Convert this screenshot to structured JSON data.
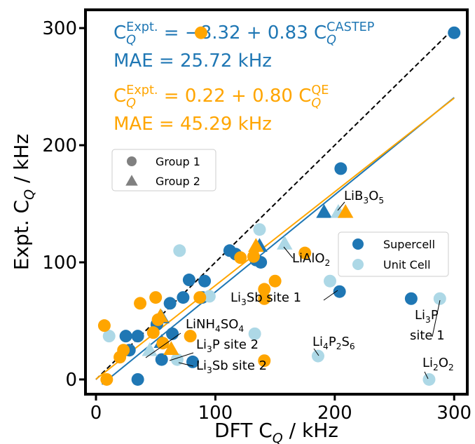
{
  "chart_data": {
    "type": "scatter",
    "xlabel": [
      {
        "text": "DFT C"
      },
      {
        "text": "Q",
        "sub": true,
        "italic": true
      },
      {
        "text": " / kHz"
      }
    ],
    "ylabel": [
      {
        "text": "Expt. C"
      },
      {
        "text": "Q",
        "sub": true,
        "italic": true
      },
      {
        "text": " / kHz"
      }
    ],
    "xlim": [
      -8.8,
      311
    ],
    "ylim": [
      -12.6,
      315.6
    ],
    "xticks": [
      0,
      100,
      200,
      300
    ],
    "yticks": [
      0,
      100,
      200,
      300
    ],
    "groups": [
      {
        "name": "Group 1",
        "marker": "circle"
      },
      {
        "name": "Group 2",
        "marker": "triangle"
      }
    ],
    "legend_marker_color": "#808080",
    "series": [
      {
        "name": "Supercell",
        "color": "#1f77b4",
        "x": [
          [
            300,
            205,
            112,
            117,
            134,
            138,
            78,
            91,
            73,
            89,
            62,
            204,
            264,
            51,
            64,
            25,
            35,
            28,
            55,
            81,
            35
          ],
          [
            191,
            137,
            55,
            55
          ]
        ],
        "values": [
          [
            296,
            180,
            110,
            107,
            102,
            100,
            85,
            84,
            70,
            70,
            65,
            75,
            69,
            47,
            39,
            37,
            37,
            25,
            17,
            15,
            0
          ],
          [
            143,
            114,
            53,
            32
          ]
        ]
      },
      {
        "name": "Unit Cell",
        "color": "#add8e6",
        "x": [
          [
            288,
            279,
            186,
            133,
            196,
            137,
            70,
            95,
            68,
            11
          ],
          [
            158,
            203,
            45
          ]
        ],
        "values": [
          [
            69,
            0,
            20,
            39,
            84,
            128,
            110,
            71,
            17,
            37
          ],
          [
            116,
            143,
            25
          ]
        ]
      },
      {
        "color": "#ffa500",
        "x": [
          [
            88,
            7,
            9,
            37,
            50,
            52,
            48,
            56,
            23,
            20,
            79,
            87,
            121,
            141,
            141,
            150,
            141,
            175,
            132
          ],
          [
            209,
            134,
            54,
            63
          ]
        ],
        "values": [
          [
            296,
            46,
            0,
            65,
            70,
            51,
            40,
            31,
            25,
            19,
            37,
            70,
            104,
            77,
            69,
            84,
            16,
            108,
            105
          ],
          [
            143,
            114,
            54,
            26
          ]
        ]
      }
    ],
    "fits": [
      {
        "color": "#000000",
        "dashed": true,
        "intercept": 0,
        "slope": 1,
        "x_range": [
          0,
          300
        ]
      },
      {
        "color": "#1f77b4",
        "intercept": -8.32,
        "slope": 0.83,
        "x_range": [
          5,
          300
        ]
      },
      {
        "color": "#ffa500",
        "intercept": 0.22,
        "slope": 0.8,
        "x_range": [
          0,
          300
        ]
      }
    ],
    "formulas": [
      {
        "color": "#1f77b4",
        "parts": [
          {
            "text": "C"
          },
          {
            "text": "Expt.",
            "sup": true
          },
          {
            "text": "Q",
            "sub": true,
            "italic": true
          },
          {
            "text": " = −8.32 + 0.83 C"
          },
          {
            "text": "CASTEP",
            "sup": true
          },
          {
            "text": "Q",
            "sub": true,
            "italic": true
          }
        ]
      },
      {
        "color": "#1f77b4",
        "parts": [
          {
            "text": "MAE = 25.72 kHz"
          }
        ]
      },
      {
        "color": "#ffa500",
        "parts": [
          {
            "text": "C"
          },
          {
            "text": "Expt.",
            "sup": true
          },
          {
            "text": "Q",
            "sub": true,
            "italic": true
          },
          {
            "text": " = 0.22 + 0.80 C"
          },
          {
            "text": "QE",
            "sup": true
          },
          {
            "text": "Q",
            "sub": true,
            "italic": true
          }
        ]
      },
      {
        "color": "#ffa500",
        "parts": [
          {
            "text": "MAE = 45.29 kHz"
          }
        ]
      }
    ],
    "annotations": [
      [
        {
          "text": "LiB"
        },
        {
          "text": "3",
          "sub": true
        },
        {
          "text": "O"
        },
        {
          "text": "5",
          "sub": true
        }
      ],
      [
        {
          "text": "LiAlO"
        },
        {
          "text": "2",
          "sub": true
        }
      ],
      [
        {
          "text": "Li"
        },
        {
          "text": "3",
          "sub": true
        },
        {
          "text": "Sb site 1"
        }
      ],
      [
        {
          "text": "Li"
        },
        {
          "text": "3",
          "sub": true
        },
        {
          "text": "P"
        }
      ],
      [
        {
          "text": "site 1"
        }
      ],
      [
        {
          "text": "LiNH"
        },
        {
          "text": "4",
          "sub": true
        },
        {
          "text": "SO"
        },
        {
          "text": "4",
          "sub": true
        }
      ],
      [
        {
          "text": "Li"
        },
        {
          "text": "3",
          "sub": true
        },
        {
          "text": "P site 2"
        }
      ],
      [
        {
          "text": "Li"
        },
        {
          "text": "3",
          "sub": true
        },
        {
          "text": "Sb site 2"
        }
      ],
      [
        {
          "text": "Li"
        },
        {
          "text": "4",
          "sub": true
        },
        {
          "text": "P"
        },
        {
          "text": "2",
          "sub": true
        },
        {
          "text": "S"
        },
        {
          "text": "6",
          "sub": true
        }
      ],
      [
        {
          "text": "Li"
        },
        {
          "text": "2",
          "sub": true
        },
        {
          "text": "O"
        },
        {
          "text": "2",
          "sub": true
        }
      ]
    ]
  }
}
